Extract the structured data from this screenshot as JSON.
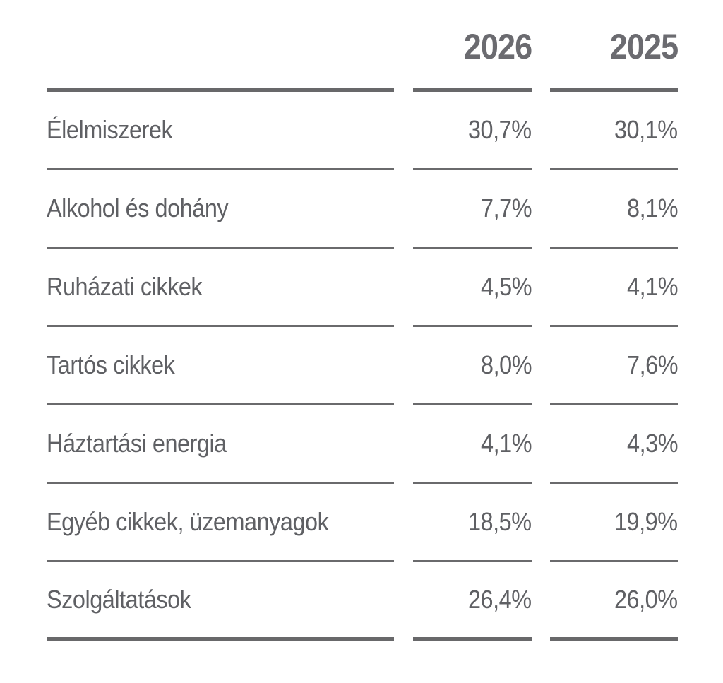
{
  "chart_data": {
    "type": "table",
    "columns": [
      "2026",
      "2025"
    ],
    "rows": [
      {
        "label": "Élelmiszerek",
        "values": [
          "30,7%",
          "30,1%"
        ]
      },
      {
        "label": "Alkohol és dohány",
        "values": [
          "7,7%",
          "8,1%"
        ]
      },
      {
        "label": "Ruházati cikkek",
        "values": [
          "4,5%",
          "4,1%"
        ]
      },
      {
        "label": "Tartós cikkek",
        "values": [
          "8,0%",
          "7,6%"
        ]
      },
      {
        "label": "Háztartási energia",
        "values": [
          "4,1%",
          "4,3%"
        ]
      },
      {
        "label": "Egyéb cikkek, üzemanyagok",
        "values": [
          "18,5%",
          "19,9%"
        ]
      },
      {
        "label": "Szolgáltatások",
        "values": [
          "26,4%",
          "26,0%"
        ]
      }
    ],
    "colors": {
      "text": "#5f6064",
      "header": "#6b6b70",
      "rule": "#68686a"
    }
  }
}
